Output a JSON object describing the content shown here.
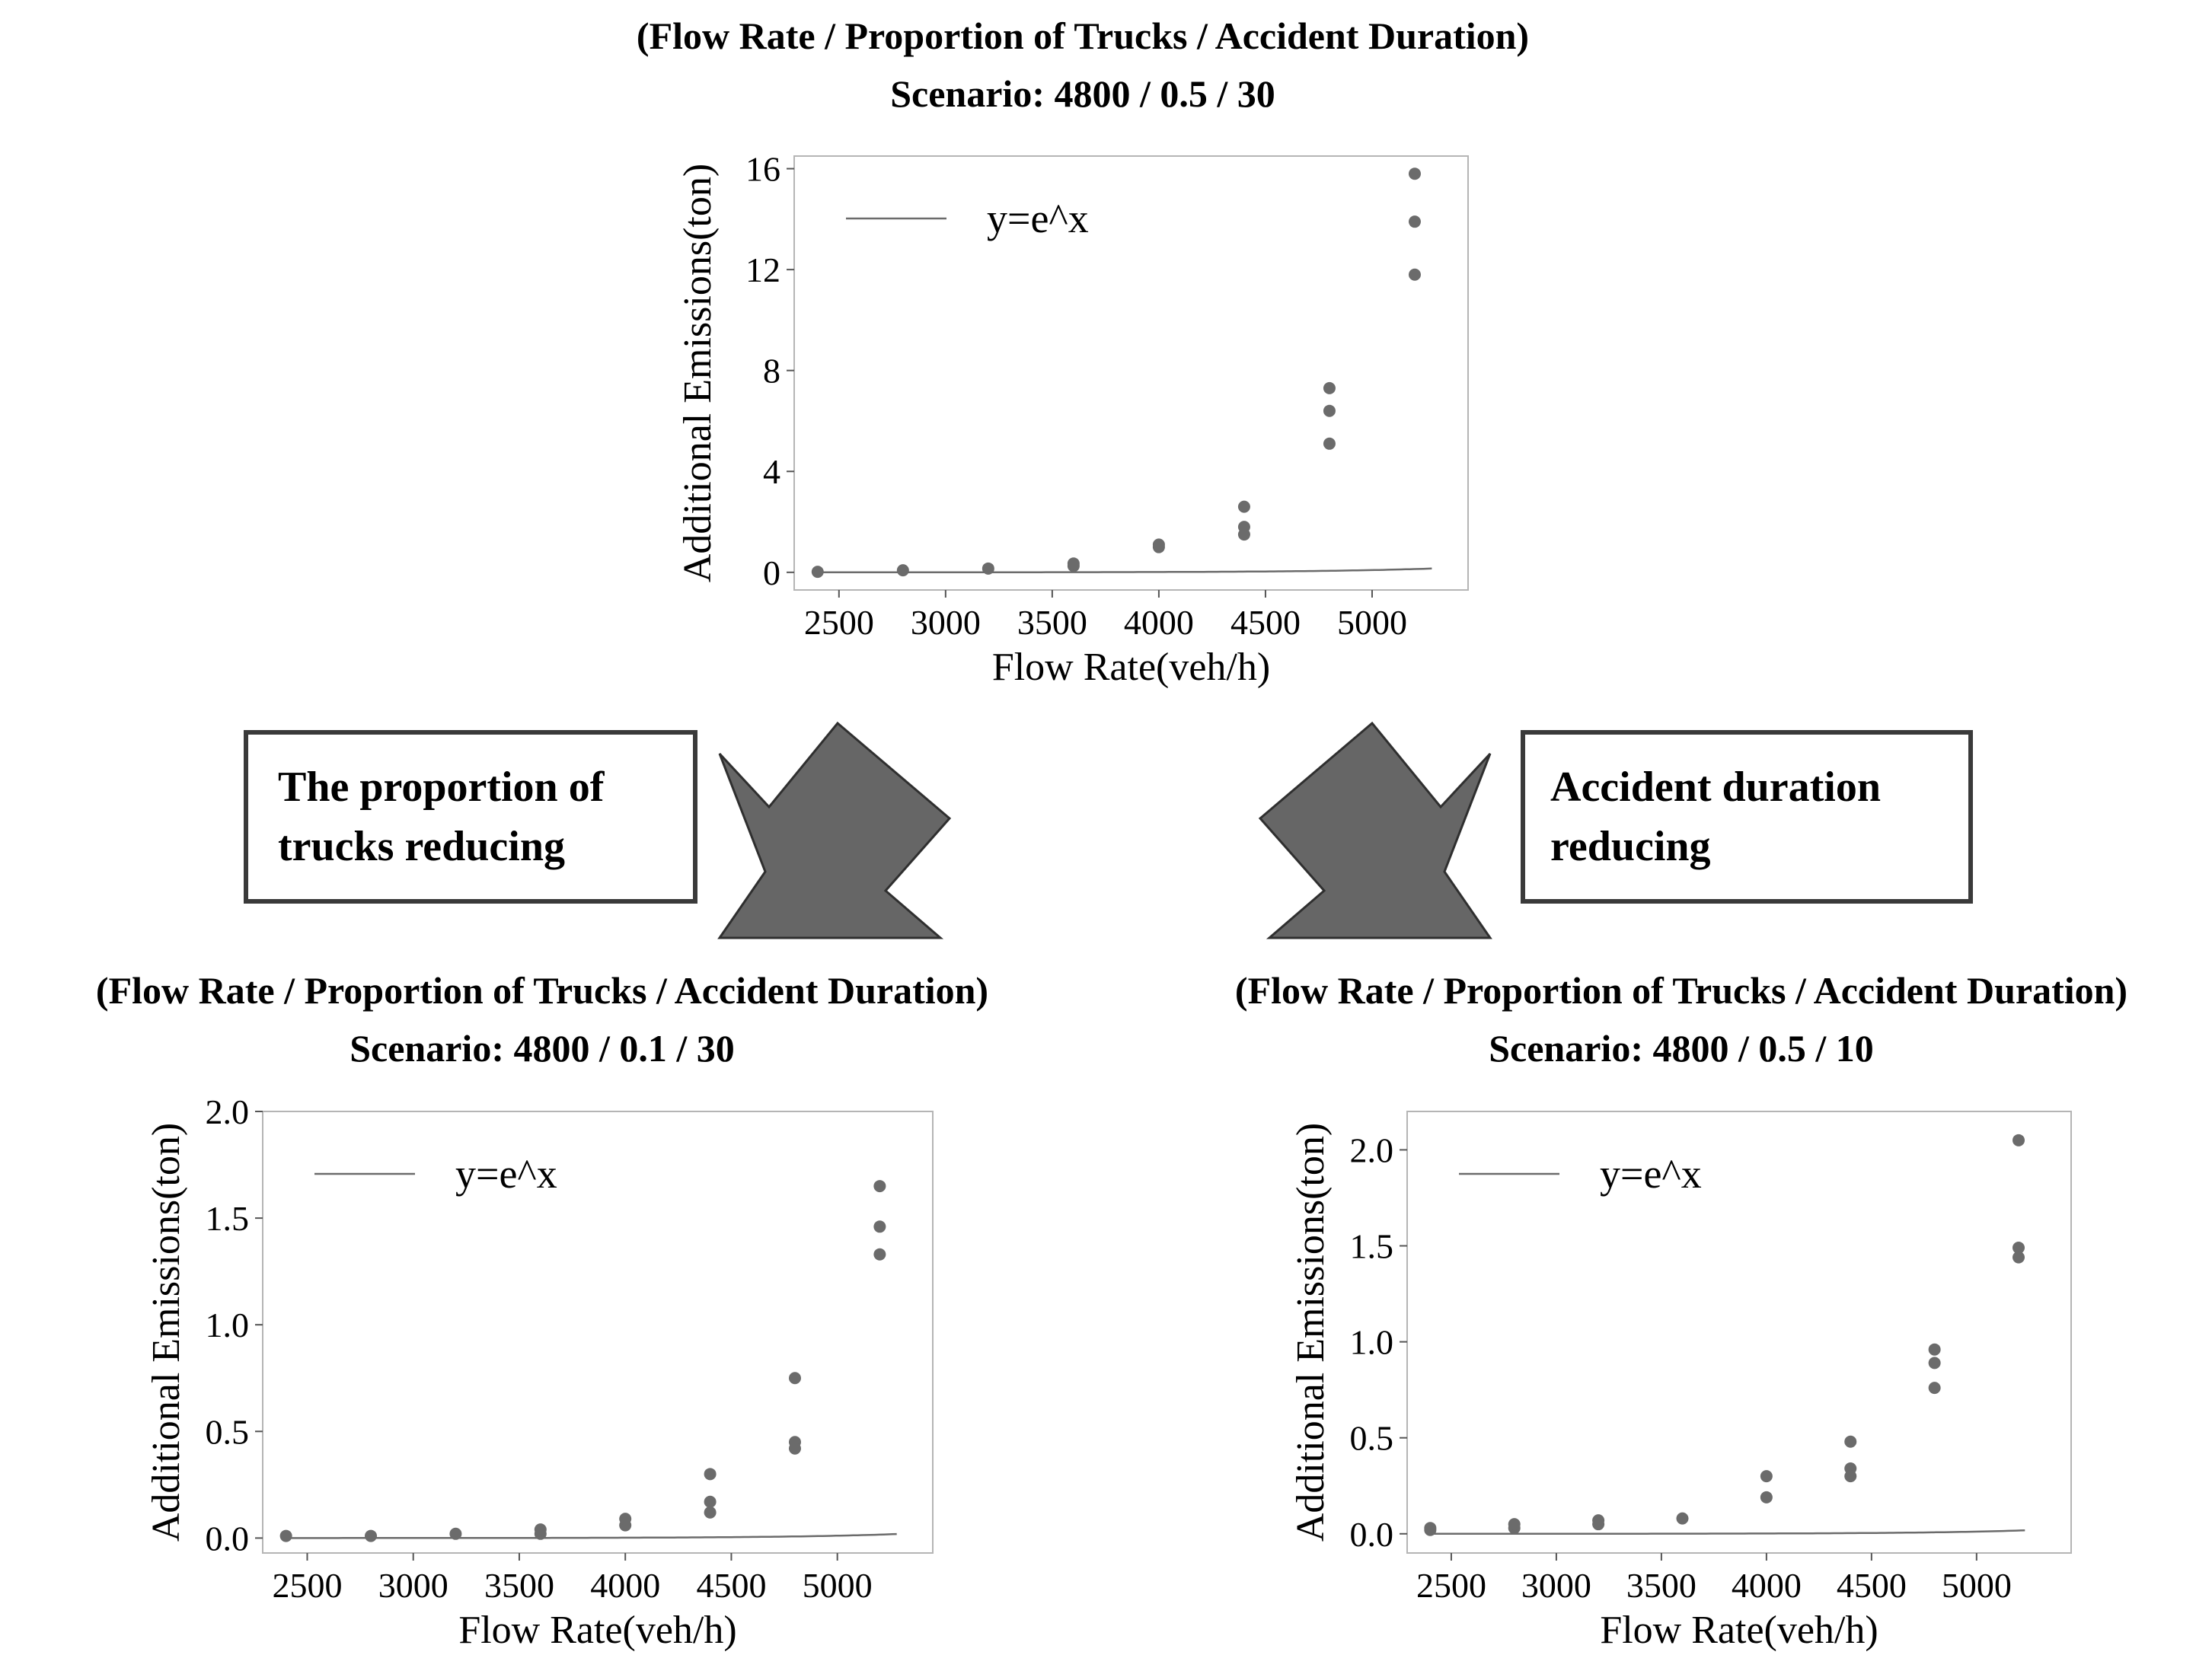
{
  "boxes": [
    {
      "line1": "The proportion of",
      "line2": "trucks reducing"
    },
    {
      "line1": "Accident duration",
      "line2": "reducing"
    }
  ],
  "colors": {
    "points": "#6b6b6b",
    "curve": "#6b6b6b",
    "arrow": "#666666",
    "frame": "#3a3a3a"
  },
  "chart_data": [
    {
      "type": "scatter",
      "title_line1": "(Flow Rate / Proportion of Trucks / Accident Duration)",
      "title_line2": "Scenario: 4800 / 0.5 / 30",
      "xlabel": "Flow Rate(veh/h)",
      "ylabel": "Additional Emissions(ton)",
      "legend": "y=e^x",
      "legend_position": "top-left",
      "grid": false,
      "xlim": [
        2290,
        5450
      ],
      "ylim": [
        -0.7,
        16.5
      ],
      "xticks": [
        "2500",
        "3000",
        "3500",
        "4000",
        "4500",
        "5000"
      ],
      "xtick_values": [
        2500,
        3000,
        3500,
        4000,
        4500,
        5000
      ],
      "yticks": [
        "0",
        "4",
        "8",
        "12",
        "16"
      ],
      "ytick_values": [
        0,
        4,
        8,
        12,
        16
      ],
      "points": [
        [
          2400,
          0.02
        ],
        [
          2800,
          0.08
        ],
        [
          3200,
          0.15
        ],
        [
          3600,
          0.25
        ],
        [
          3600,
          0.35
        ],
        [
          4000,
          1.0
        ],
        [
          4000,
          1.1
        ],
        [
          4400,
          2.6
        ],
        [
          4400,
          1.8
        ],
        [
          4400,
          1.5
        ],
        [
          4800,
          7.3
        ],
        [
          4800,
          6.4
        ],
        [
          4800,
          5.1
        ],
        [
          5200,
          15.8
        ],
        [
          5200,
          13.9
        ],
        [
          5200,
          11.8
        ]
      ],
      "curve": {
        "a": 0.0006,
        "b": 0.00192,
        "x_range": [
          2400,
          5280
        ]
      }
    },
    {
      "type": "scatter",
      "title_line1": "(Flow Rate / Proportion of Trucks / Accident Duration)",
      "title_line2": "Scenario: 4800 / 0.1 / 30",
      "xlabel": "Flow Rate(veh/h)",
      "ylabel": "Additional Emissions(ton)",
      "legend": "y=e^x",
      "legend_position": "top-left",
      "grid": false,
      "xlim": [
        2290,
        5450
      ],
      "ylim": [
        -0.07,
        2.0
      ],
      "xticks": [
        "2500",
        "3000",
        "3500",
        "4000",
        "4500",
        "5000"
      ],
      "xtick_values": [
        2500,
        3000,
        3500,
        4000,
        4500,
        5000
      ],
      "yticks": [
        "0.0",
        "0.5",
        "1.0",
        "1.5",
        "2.0"
      ],
      "ytick_values": [
        0,
        0.5,
        1.0,
        1.5,
        2.0
      ],
      "points": [
        [
          2400,
          0.01
        ],
        [
          2800,
          0.01
        ],
        [
          3200,
          0.02
        ],
        [
          3600,
          0.02
        ],
        [
          3600,
          0.04
        ],
        [
          4000,
          0.06
        ],
        [
          4000,
          0.09
        ],
        [
          4400,
          0.3
        ],
        [
          4400,
          0.17
        ],
        [
          4400,
          0.12
        ],
        [
          4800,
          0.75
        ],
        [
          4800,
          0.45
        ],
        [
          4800,
          0.42
        ],
        [
          5200,
          1.65
        ],
        [
          5200,
          1.46
        ],
        [
          5200,
          1.33
        ]
      ],
      "curve": {
        "a": 7.9e-05,
        "b": 0.0019,
        "x_range": [
          2400,
          5280
        ]
      }
    },
    {
      "type": "scatter",
      "title_line1": "(Flow Rate / Proportion of Trucks / Accident Duration)",
      "title_line2": "Scenario: 4800 / 0.5 / 10",
      "xlabel": "Flow Rate(veh/h)",
      "ylabel": "Additional Emissions(ton)",
      "legend": "y=e^x",
      "legend_position": "top-left",
      "grid": false,
      "xlim": [
        2290,
        5450
      ],
      "ylim": [
        -0.1,
        2.2
      ],
      "xticks": [
        "2500",
        "3000",
        "3500",
        "4000",
        "4500",
        "5000"
      ],
      "xtick_values": [
        2500,
        3000,
        3500,
        4000,
        4500,
        5000
      ],
      "yticks": [
        "0.0",
        "0.5",
        "1.0",
        "1.5",
        "2.0"
      ],
      "ytick_values": [
        0,
        0.5,
        1.0,
        1.5,
        2.0
      ],
      "points": [
        [
          2400,
          0.02
        ],
        [
          2400,
          0.03
        ],
        [
          2800,
          0.03
        ],
        [
          2800,
          0.05
        ],
        [
          3200,
          0.05
        ],
        [
          3200,
          0.07
        ],
        [
          3600,
          0.08
        ],
        [
          4000,
          0.3
        ],
        [
          4000,
          0.19
        ],
        [
          4400,
          0.48
        ],
        [
          4400,
          0.34
        ],
        [
          4400,
          0.3
        ],
        [
          4800,
          0.96
        ],
        [
          4800,
          0.89
        ],
        [
          4800,
          0.76
        ],
        [
          5200,
          2.05
        ],
        [
          5200,
          1.49
        ],
        [
          5200,
          1.44
        ]
      ],
      "curve": {
        "a": 6.6e-05,
        "b": 0.00198,
        "x_range": [
          2400,
          5230
        ]
      }
    }
  ]
}
